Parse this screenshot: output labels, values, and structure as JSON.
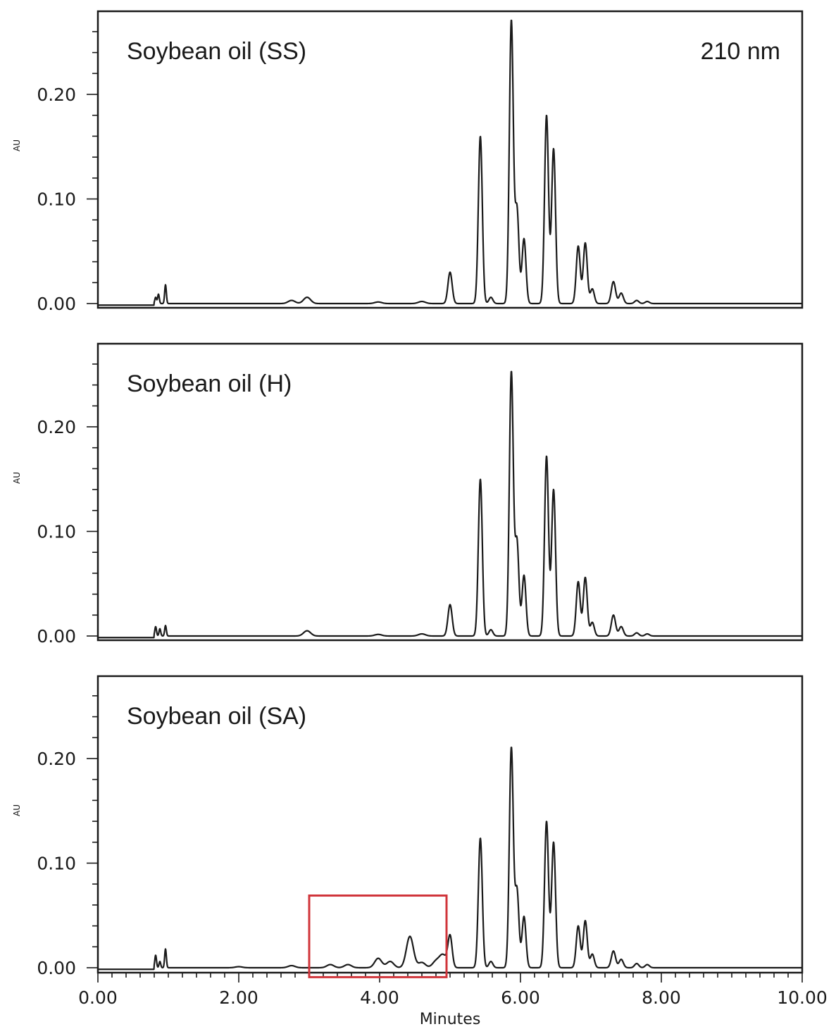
{
  "chart_data": [
    {
      "type": "line",
      "title": "Soybean oil (SS)",
      "annotation": "210 nm",
      "ylabel": "AU",
      "xlabel": "",
      "xlim": [
        0,
        10
      ],
      "ylim": [
        -0.005,
        0.285
      ],
      "yticks": [
        "0.00",
        "0.10",
        "0.20"
      ],
      "ytick_values": [
        0,
        0.1,
        0.2
      ],
      "xticks": [],
      "highlight_box": null,
      "series": [
        {
          "baseline": 0.0,
          "noise": [
            [
              0.82,
              0.006
            ],
            [
              0.86,
              0.009
            ],
            [
              0.96,
              0.018
            ],
            [
              2.75,
              0.003
            ],
            [
              2.97,
              0.006
            ],
            [
              3.98,
              0.0015
            ],
            [
              4.6,
              0.002
            ]
          ],
          "peaks": [
            [
              5.0,
              0.03
            ],
            [
              5.43,
              0.16
            ],
            [
              5.58,
              0.006
            ],
            [
              5.87,
              0.27
            ],
            [
              5.95,
              0.09
            ],
            [
              6.05,
              0.062
            ],
            [
              6.37,
              0.18
            ],
            [
              6.47,
              0.148
            ],
            [
              6.82,
              0.055
            ],
            [
              6.92,
              0.058
            ],
            [
              7.02,
              0.014
            ],
            [
              7.32,
              0.021
            ],
            [
              7.43,
              0.01
            ],
            [
              7.65,
              0.003
            ],
            [
              7.8,
              0.002
            ]
          ]
        }
      ]
    },
    {
      "type": "line",
      "title": "Soybean oil (H)",
      "annotation": "",
      "ylabel": "AU",
      "xlabel": "",
      "xlim": [
        0,
        10
      ],
      "ylim": [
        -0.005,
        0.285
      ],
      "yticks": [
        "0.00",
        "0.10",
        "0.20"
      ],
      "ytick_values": [
        0,
        0.1,
        0.2
      ],
      "xticks": [],
      "highlight_box": null,
      "series": [
        {
          "baseline": 0.0,
          "noise": [
            [
              0.82,
              0.009
            ],
            [
              0.88,
              0.007
            ],
            [
              0.96,
              0.01
            ],
            [
              2.97,
              0.005
            ],
            [
              3.98,
              0.0015
            ],
            [
              4.6,
              0.002
            ]
          ],
          "peaks": [
            [
              5.0,
              0.03
            ],
            [
              5.43,
              0.15
            ],
            [
              5.58,
              0.006
            ],
            [
              5.87,
              0.252
            ],
            [
              5.95,
              0.09
            ],
            [
              6.05,
              0.058
            ],
            [
              6.37,
              0.172
            ],
            [
              6.47,
              0.14
            ],
            [
              6.82,
              0.052
            ],
            [
              6.92,
              0.056
            ],
            [
              7.02,
              0.013
            ],
            [
              7.32,
              0.02
            ],
            [
              7.43,
              0.009
            ],
            [
              7.65,
              0.003
            ],
            [
              7.8,
              0.002
            ]
          ]
        }
      ]
    },
    {
      "type": "line",
      "title": "Soybean oil (SA)",
      "annotation": "",
      "ylabel": "AU",
      "xlabel": "Minutes",
      "xlim": [
        0,
        10
      ],
      "ylim": [
        -0.005,
        0.285
      ],
      "yticks": [
        "0.00",
        "0.10",
        "0.20"
      ],
      "ytick_values": [
        0,
        0.1,
        0.2
      ],
      "xticks": [
        "0.00",
        "2.00",
        "4.00",
        "6.00",
        "8.00",
        "10.00"
      ],
      "xtick_values": [
        0,
        2,
        4,
        6,
        8,
        10
      ],
      "highlight_box": {
        "x": [
          3.0,
          4.95
        ],
        "y": [
          -0.009,
          0.069
        ],
        "color": "#d0343a"
      },
      "series": [
        {
          "baseline": 0.0,
          "noise": [
            [
              0.82,
              0.012
            ],
            [
              0.88,
              0.006
            ],
            [
              0.96,
              0.018
            ],
            [
              2.0,
              0.001
            ],
            [
              2.75,
              0.002
            ],
            [
              3.3,
              0.003
            ],
            [
              3.55,
              0.003
            ],
            [
              3.98,
              0.009
            ],
            [
              4.15,
              0.006
            ],
            [
              4.43,
              0.03
            ],
            [
              4.6,
              0.005
            ],
            [
              4.8,
              0.006
            ],
            [
              4.9,
              0.012
            ]
          ],
          "peaks": [
            [
              5.0,
              0.03
            ],
            [
              5.43,
              0.124
            ],
            [
              5.58,
              0.006
            ],
            [
              5.87,
              0.21
            ],
            [
              5.95,
              0.074
            ],
            [
              6.05,
              0.049
            ],
            [
              6.37,
              0.14
            ],
            [
              6.47,
              0.12
            ],
            [
              6.82,
              0.04
            ],
            [
              6.92,
              0.045
            ],
            [
              7.02,
              0.013
            ],
            [
              7.32,
              0.016
            ],
            [
              7.43,
              0.008
            ],
            [
              7.65,
              0.004
            ],
            [
              7.8,
              0.003
            ]
          ]
        }
      ]
    }
  ]
}
